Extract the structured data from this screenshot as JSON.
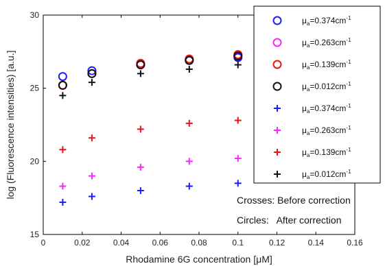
{
  "chart_data": {
    "type": "scatter",
    "xlabel_text": "Rhodamine 6G concentration [",
    "xlabel_unit": "μM",
    "xlabel_end": "]",
    "ylabel": "log (Fluorescence intensities) [a.u.]",
    "xlim": [
      0,
      0.16
    ],
    "ylim": [
      15,
      30
    ],
    "xticks": [
      0,
      0.02,
      0.04,
      0.06,
      0.08,
      0.1,
      0.12,
      0.14,
      0.16
    ],
    "xtick_labels": [
      "0",
      "0.02",
      "0.04",
      "0.06",
      "0.08",
      "0.1",
      "0.12",
      "0.14",
      "0.16"
    ],
    "yticks": [
      15,
      20,
      25,
      30
    ],
    "ytick_labels": [
      "15",
      "20",
      "25",
      "30"
    ],
    "grid": false,
    "legend_position": "top-right",
    "x": [
      0.01,
      0.025,
      0.05,
      0.075,
      0.1
    ],
    "series": [
      {
        "name": "μa=0.374cm-1",
        "mu": "μ",
        "sub": "a",
        "val": "=0.374cm",
        "sup": "-1",
        "marker": "circle",
        "color": "#1a1aff",
        "values": [
          25.8,
          26.2,
          26.6,
          26.9,
          27.1
        ]
      },
      {
        "name": "μa=0.263cm-1",
        "mu": "μ",
        "sub": "a",
        "val": "=0.263cm",
        "sup": "-1",
        "marker": "circle",
        "color": "#ff22ff",
        "values": [
          25.2,
          26.0,
          26.6,
          26.9,
          27.2
        ]
      },
      {
        "name": "μa=0.139cm-1",
        "mu": "μ",
        "sub": "a",
        "val": "=0.139cm",
        "sup": "-1",
        "marker": "circle",
        "color": "#ee1111",
        "values": [
          25.2,
          26.0,
          26.7,
          27.0,
          27.3
        ]
      },
      {
        "name": "μa=0.012cm-1",
        "mu": "μ",
        "sub": "a",
        "val": "=0.012cm",
        "sup": "-1",
        "marker": "circle",
        "color": "#111111",
        "values": [
          25.2,
          26.0,
          26.6,
          26.9,
          27.2
        ]
      },
      {
        "name": "μa=0.374cm-1",
        "mu": "μ",
        "sub": "a",
        "val": "=0.374cm",
        "sup": "-1",
        "marker": "plus",
        "color": "#1a1aff",
        "values": [
          17.2,
          17.6,
          18.0,
          18.3,
          18.5
        ]
      },
      {
        "name": "μa=0.263cm-1",
        "mu": "μ",
        "sub": "a",
        "val": "=0.263cm",
        "sup": "-1",
        "marker": "plus",
        "color": "#ff22ff",
        "values": [
          18.3,
          19.0,
          19.6,
          20.0,
          20.2
        ]
      },
      {
        "name": "μa=0.139cm-1",
        "mu": "μ",
        "sub": "a",
        "val": "=0.139cm",
        "sup": "-1",
        "marker": "plus",
        "color": "#ee1111",
        "values": [
          20.8,
          21.6,
          22.2,
          22.6,
          22.8
        ]
      },
      {
        "name": "μa=0.012cm-1",
        "mu": "μ",
        "sub": "a",
        "val": "=0.012cm",
        "sup": "-1",
        "marker": "plus",
        "color": "#111111",
        "values": [
          24.5,
          25.4,
          26.0,
          26.3,
          26.6
        ]
      }
    ],
    "annotations": [
      "Crosses: Before correction",
      "Circles:   After correction"
    ]
  }
}
